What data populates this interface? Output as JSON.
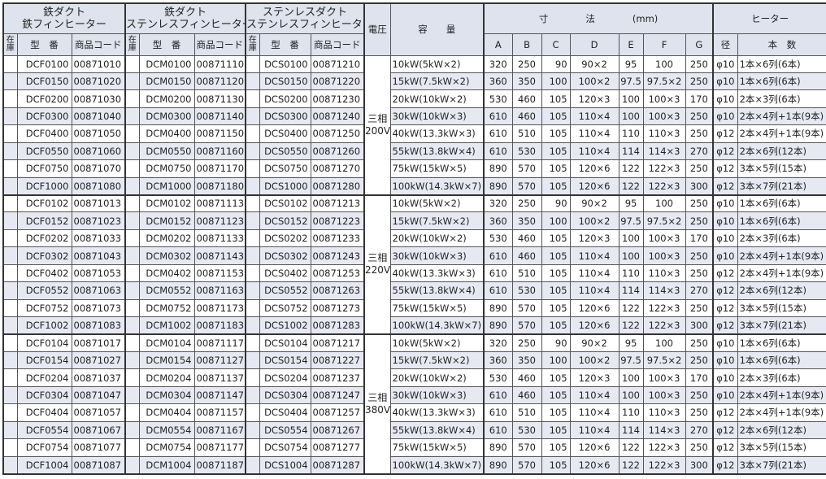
{
  "header": {
    "groups": [
      {
        "line1": "鉄ダクト",
        "line2": "鉄フィンヒーター"
      },
      {
        "line1": "鉄ダクト",
        "line2": "ステンレスフィンヒーター"
      },
      {
        "line1": "ステンレスダクト",
        "line2": "ステンレスフィンヒーター"
      }
    ],
    "stock": "在庫",
    "model": "型　番",
    "code": "商品コード",
    "voltage": "電圧",
    "capacity": "容　　量",
    "dimensions": "寸　　　　法　　　　(mm)",
    "dims": [
      "A",
      "B",
      "C",
      "D",
      "E",
      "F",
      "G"
    ],
    "heater": "ヒーター",
    "diameter": "径",
    "count": "本　数"
  },
  "voltage_groups": [
    {
      "label1": "三相",
      "label2": "200V"
    },
    {
      "label1": "三相",
      "label2": "220V"
    },
    {
      "label1": "三相",
      "label2": "380V"
    }
  ],
  "rows": [
    [
      "DCF0100",
      "00871010",
      "DCM0100",
      "00871110",
      "DCS0100",
      "00871210",
      "10kW(5kW×2)",
      "320",
      "250",
      "90",
      "90×2",
      "95",
      "100",
      "250",
      "φ10",
      "1本×6列(6本)"
    ],
    [
      "DCF0150",
      "00871020",
      "DCM0150",
      "00871120",
      "DCS0150",
      "00871220",
      "15kW(7.5kW×2)",
      "360",
      "350",
      "100",
      "100×2",
      "97.5",
      "97.5×2",
      "250",
      "φ10",
      "1本×6列(6本)"
    ],
    [
      "DCF0200",
      "00871030",
      "DCM0200",
      "00871130",
      "DCS0200",
      "00871230",
      "20kW(10kW×2)",
      "530",
      "460",
      "105",
      "120×3",
      "100",
      "100×3",
      "170",
      "φ10",
      "2本×3列(6本)"
    ],
    [
      "DCF0300",
      "00871040",
      "DCM0300",
      "00871140",
      "DCS0300",
      "00871240",
      "30kW(10kW×3)",
      "610",
      "460",
      "105",
      "110×4",
      "100",
      "100×3",
      "250",
      "φ10",
      "2本×4列+1本(9本)"
    ],
    [
      "DCF0400",
      "00871050",
      "DCM0400",
      "00871150",
      "DCS0400",
      "00871250",
      "40kW(13.3kW×3)",
      "610",
      "510",
      "105",
      "110×4",
      "110",
      "110×3",
      "250",
      "φ12",
      "2本×4列+1本(9本)"
    ],
    [
      "DCF0550",
      "00871060",
      "DCM0550",
      "00871160",
      "DCS0550",
      "00871260",
      "55kW(13.8kW×4)",
      "610",
      "530",
      "105",
      "110×4",
      "114",
      "114×3",
      "270",
      "φ12",
      "2本×6列(12本)"
    ],
    [
      "DCF0750",
      "00871070",
      "DCM0750",
      "00871170",
      "DCS0750",
      "00871270",
      "75kW(15kW×5)",
      "890",
      "570",
      "105",
      "120×6",
      "122",
      "122×3",
      "250",
      "φ12",
      "3本×5列(15本)"
    ],
    [
      "DCF1000",
      "00871080",
      "DCM1000",
      "00871180",
      "DCS1000",
      "00871280",
      "100kW(14.3kW×7)",
      "890",
      "570",
      "105",
      "120×6",
      "122",
      "122×3",
      "300",
      "φ12",
      "3本×7列(21本)"
    ],
    [
      "DCF0102",
      "00871013",
      "DCM0102",
      "00871113",
      "DCS0102",
      "00871213",
      "10kW(5kW×2)",
      "320",
      "250",
      "90",
      "90×2",
      "95",
      "100",
      "250",
      "φ10",
      "1本×6列(6本)"
    ],
    [
      "DCF0152",
      "00871023",
      "DCM0152",
      "00871123",
      "DCS0152",
      "00871223",
      "15kW(7.5kW×2)",
      "360",
      "350",
      "100",
      "100×2",
      "97.5",
      "97.5×2",
      "250",
      "φ10",
      "1本×6列(6本)"
    ],
    [
      "DCF0202",
      "00871033",
      "DCM0202",
      "00871133",
      "DCS0202",
      "00871233",
      "20kW(10kW×2)",
      "530",
      "460",
      "105",
      "120×3",
      "100",
      "100×3",
      "170",
      "φ10",
      "2本×3列(6本)"
    ],
    [
      "DCF0302",
      "00871043",
      "DCM0302",
      "00871143",
      "DCS0302",
      "00871243",
      "30kW(10kW×3)",
      "610",
      "460",
      "105",
      "110×4",
      "100",
      "100×3",
      "250",
      "φ10",
      "2本×4列+1本(9本)"
    ],
    [
      "DCF0402",
      "00871053",
      "DCM0402",
      "00871153",
      "DCS0402",
      "00871253",
      "40kW(13.3kW×3)",
      "610",
      "510",
      "105",
      "110×4",
      "110",
      "110×3",
      "250",
      "φ12",
      "2本×4列+1本(9本)"
    ],
    [
      "DCF0552",
      "00871063",
      "DCM0552",
      "00871163",
      "DCS0552",
      "00871263",
      "55kW(13.8kW×4)",
      "610",
      "530",
      "105",
      "110×4",
      "114",
      "114×3",
      "270",
      "φ12",
      "2本×6列(12本)"
    ],
    [
      "DCF0752",
      "00871073",
      "DCM0752",
      "00871173",
      "DCS0752",
      "00871273",
      "75kW(15kW×5)",
      "890",
      "570",
      "105",
      "120×6",
      "122",
      "122×3",
      "250",
      "φ12",
      "3本×5列(15本)"
    ],
    [
      "DCF1002",
      "00871083",
      "DCM1002",
      "00871183",
      "DCS1002",
      "00871283",
      "100kW(14.3kW×7)",
      "890",
      "570",
      "105",
      "120×6",
      "122",
      "122×3",
      "300",
      "φ12",
      "3本×7列(21本)"
    ],
    [
      "DCF0104",
      "00871017",
      "DCM0104",
      "00871117",
      "DCS0104",
      "00871217",
      "10kW(5kW×2)",
      "320",
      "250",
      "90",
      "90×2",
      "95",
      "100",
      "250",
      "φ10",
      "1本×6列(6本)"
    ],
    [
      "DCF0154",
      "00871027",
      "DCM0154",
      "00871127",
      "DCS0154",
      "00871227",
      "15kW(7.5kW×2)",
      "360",
      "350",
      "100",
      "100×2",
      "97.5",
      "97.5×2",
      "250",
      "φ10",
      "1本×6列(6本)"
    ],
    [
      "DCF0204",
      "00871037",
      "DCM0204",
      "00871137",
      "DCS0204",
      "00871237",
      "20kW(10kW×2)",
      "530",
      "460",
      "105",
      "120×3",
      "100",
      "100×3",
      "170",
      "φ10",
      "2本×3列(6本)"
    ],
    [
      "DCF0304",
      "00871047",
      "DCM0304",
      "00871147",
      "DCS0304",
      "00871247",
      "30kW(10kW×3)",
      "610",
      "460",
      "105",
      "110×4",
      "100",
      "100×3",
      "250",
      "φ10",
      "2本×4列+1本(9本)"
    ],
    [
      "DCF0404",
      "00871057",
      "DCM0404",
      "00871157",
      "DCS0404",
      "00871257",
      "40kW(13.3kW×3)",
      "610",
      "510",
      "105",
      "110×4",
      "110",
      "110×3",
      "250",
      "φ12",
      "2本×4列+1本(9本)"
    ],
    [
      "DCF0554",
      "00871067",
      "DCM0554",
      "00871167",
      "DCS0554",
      "00871267",
      "55kW(13.8kW×4)",
      "610",
      "530",
      "105",
      "110×4",
      "114",
      "114×3",
      "270",
      "φ12",
      "2本×6列(12本)"
    ],
    [
      "DCF0754",
      "00871077",
      "DCM0754",
      "00871177",
      "DCS0754",
      "00871277",
      "75kW(15kW×5)",
      "890",
      "570",
      "105",
      "120×6",
      "122",
      "122×3",
      "250",
      "φ12",
      "3本×5列(15本)"
    ],
    [
      "DCF1004",
      "00871087",
      "DCM1004",
      "00871187",
      "DCS1004",
      "00871287",
      "100kW(14.3kW×7)",
      "890",
      "570",
      "105",
      "120×6",
      "122",
      "122×3",
      "300",
      "φ12",
      "3本×7列(21本)"
    ]
  ]
}
